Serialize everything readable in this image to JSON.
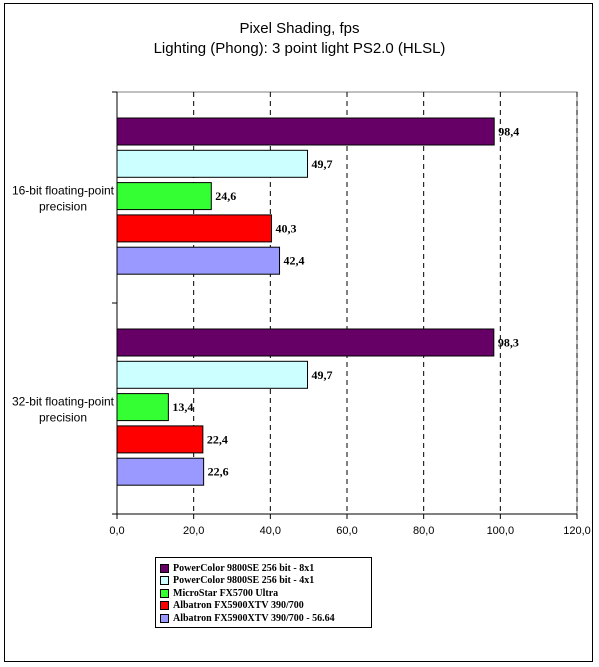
{
  "chart_data": {
    "type": "bar",
    "orientation": "horizontal",
    "title": "Pixel Shading, fps",
    "subtitle": "Lighting (Phong): 3 point light PS2.0 (HLSL)",
    "categories": [
      "16-bit floating-point precision",
      "32-bit floating-point precision"
    ],
    "category_lines": [
      [
        "16-bit floating-point",
        "precision"
      ],
      [
        "32-bit floating-point",
        "precision"
      ]
    ],
    "series": [
      {
        "name": "PowerColor 9800SE 256 bit - 8x1",
        "color": "#660066",
        "values": [
          98.4,
          98.3
        ],
        "labels": [
          "98,4",
          "98,3"
        ]
      },
      {
        "name": "PowerColor 9800SE 256 bit - 4x1",
        "color": "#ccffff",
        "values": [
          49.7,
          49.7
        ],
        "labels": [
          "49,7",
          "49,7"
        ]
      },
      {
        "name": "MicroStar FX5700 Ultra",
        "color": "#33ff33",
        "values": [
          24.6,
          13.4
        ],
        "labels": [
          "24,6",
          "13,4"
        ]
      },
      {
        "name": "Albatron FX5900XTV 390/700",
        "color": "#ff0000",
        "values": [
          40.3,
          22.4
        ],
        "labels": [
          "40,3",
          "22,4"
        ]
      },
      {
        "name": "Albatron FX5900XTV 390/700 - 56.64",
        "color": "#9999ff",
        "values": [
          42.4,
          22.6
        ],
        "labels": [
          "42,4",
          "22,6"
        ]
      }
    ],
    "xlim": [
      0,
      120
    ],
    "x_ticks": [
      0,
      20,
      40,
      60,
      80,
      100,
      120
    ],
    "x_tick_labels": [
      "0,0",
      "20,0",
      "40,0",
      "60,0",
      "80,0",
      "100,0",
      "120,0"
    ],
    "gridlines": "vertical dashed",
    "legend_position": "bottom"
  }
}
